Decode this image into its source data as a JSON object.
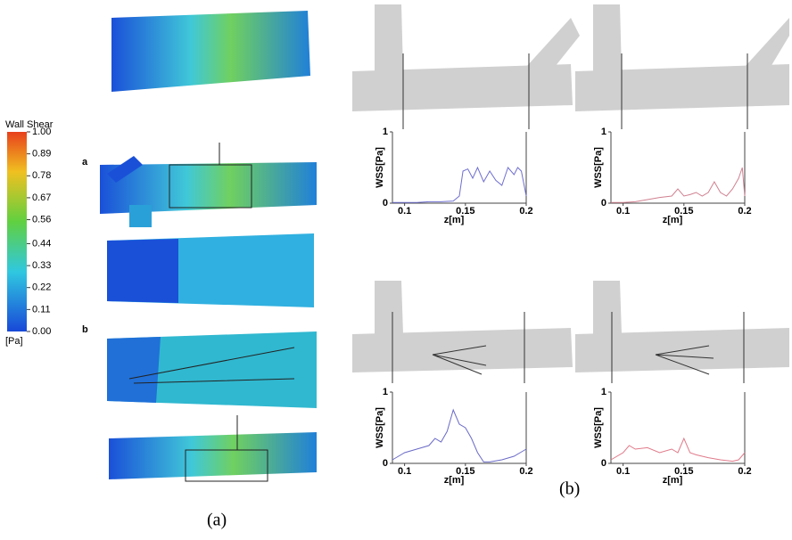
{
  "colorbar": {
    "title": "Wall Shear",
    "unit": "[Pa]",
    "ticks": [
      {
        "value": 1,
        "label": "1.00"
      },
      {
        "value": 0.89,
        "label": "0.89"
      },
      {
        "value": 0.78,
        "label": "0.78"
      },
      {
        "value": 0.67,
        "label": "0.67"
      },
      {
        "value": 0.56,
        "label": "0.56"
      },
      {
        "value": 0.44,
        "label": "0.44"
      },
      {
        "value": 0.33,
        "label": "0.33"
      },
      {
        "value": 0.22,
        "label": "0.22"
      },
      {
        "value": 0.11,
        "label": "0.11"
      },
      {
        "value": 0,
        "label": "0.00"
      }
    ]
  },
  "labels": {
    "row_a": "a",
    "row_b": "b",
    "panel_a": "(a)",
    "panel_b": "(b)"
  },
  "chart_data": [
    {
      "type": "line",
      "xlabel": "z[m]",
      "ylabel": "WSS[Pa]",
      "xlim": [
        0.09,
        0.2
      ],
      "ylim": [
        0,
        1
      ],
      "xticks": [
        0.1,
        0.15,
        0.2
      ],
      "yticks": [
        0,
        1
      ],
      "series": [
        {
          "color": "#6f6fd0",
          "x": [
            0.09,
            0.1,
            0.11,
            0.12,
            0.13,
            0.14,
            0.145,
            0.148,
            0.152,
            0.156,
            0.16,
            0.165,
            0.17,
            0.175,
            0.18,
            0.185,
            0.19,
            0.193,
            0.196,
            0.2
          ],
          "values": [
            0.01,
            0.01,
            0.01,
            0.02,
            0.02,
            0.03,
            0.1,
            0.45,
            0.48,
            0.35,
            0.5,
            0.3,
            0.45,
            0.32,
            0.25,
            0.5,
            0.4,
            0.5,
            0.45,
            0.1
          ]
        }
      ]
    },
    {
      "type": "line",
      "xlabel": "z[m]",
      "ylabel": "WSS[Pa]",
      "xlim": [
        0.09,
        0.2
      ],
      "ylim": [
        0,
        1
      ],
      "xticks": [
        0.1,
        0.15,
        0.2
      ],
      "yticks": [
        0,
        1
      ],
      "series": [
        {
          "color": "#d08090",
          "x": [
            0.09,
            0.1,
            0.11,
            0.12,
            0.13,
            0.14,
            0.145,
            0.15,
            0.155,
            0.16,
            0.165,
            0.17,
            0.175,
            0.18,
            0.185,
            0.19,
            0.195,
            0.198,
            0.2
          ],
          "values": [
            0.01,
            0.01,
            0.02,
            0.05,
            0.08,
            0.1,
            0.2,
            0.1,
            0.12,
            0.15,
            0.1,
            0.15,
            0.3,
            0.15,
            0.1,
            0.2,
            0.35,
            0.5,
            0.1
          ]
        }
      ]
    },
    {
      "type": "line",
      "xlabel": "z[m]",
      "ylabel": "WSS[Pa]",
      "xlim": [
        0.09,
        0.2
      ],
      "ylim": [
        0,
        1
      ],
      "xticks": [
        0.1,
        0.15,
        0.2
      ],
      "yticks": [
        0,
        1
      ],
      "series": [
        {
          "color": "#6a6ac8",
          "x": [
            0.09,
            0.1,
            0.11,
            0.12,
            0.125,
            0.13,
            0.135,
            0.14,
            0.145,
            0.15,
            0.155,
            0.16,
            0.165,
            0.17,
            0.18,
            0.19,
            0.195,
            0.2
          ],
          "values": [
            0.05,
            0.15,
            0.2,
            0.25,
            0.35,
            0.3,
            0.45,
            0.75,
            0.55,
            0.5,
            0.35,
            0.15,
            0.02,
            0.02,
            0.05,
            0.1,
            0.15,
            0.2
          ]
        }
      ]
    },
    {
      "type": "line",
      "xlabel": "z[m]",
      "ylabel": "WSS[Pa]",
      "xlim": [
        0.09,
        0.2
      ],
      "ylim": [
        0,
        1
      ],
      "xticks": [
        0.1,
        0.15,
        0.2
      ],
      "yticks": [
        0,
        1
      ],
      "series": [
        {
          "color": "#e07a8a",
          "x": [
            0.09,
            0.1,
            0.105,
            0.11,
            0.12,
            0.13,
            0.14,
            0.145,
            0.15,
            0.155,
            0.16,
            0.17,
            0.18,
            0.19,
            0.195,
            0.2
          ],
          "values": [
            0.05,
            0.15,
            0.25,
            0.2,
            0.22,
            0.15,
            0.2,
            0.15,
            0.35,
            0.15,
            0.12,
            0.08,
            0.05,
            0.03,
            0.05,
            0.15
          ]
        }
      ]
    }
  ]
}
